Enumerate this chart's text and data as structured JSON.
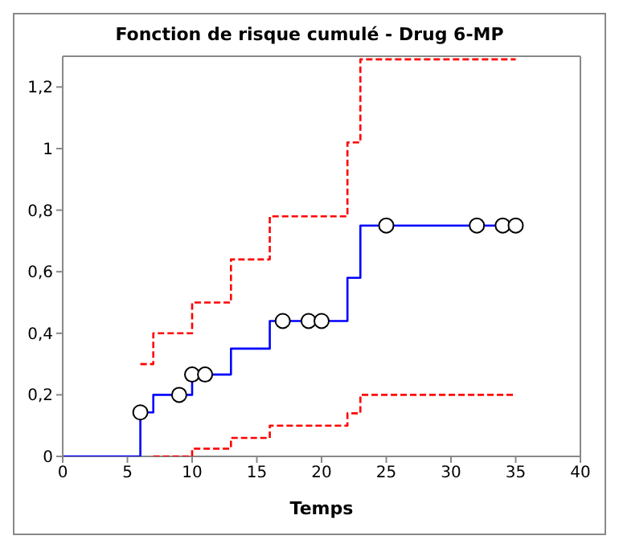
{
  "chart_data": {
    "type": "step",
    "title": "Fonction de risque cumulé - Drug 6-MP",
    "xlabel": "Temps",
    "xlim": [
      0,
      40
    ],
    "xticks": [
      0,
      5,
      10,
      15,
      20,
      25,
      30,
      35,
      40
    ],
    "ylim": [
      0,
      1.3
    ],
    "yticks": [
      0,
      {
        "value": 0.2,
        "label": "0,2"
      },
      {
        "value": 0.4,
        "label": "0,4"
      },
      {
        "value": 0.6,
        "label": "0,6"
      },
      {
        "value": 0.8,
        "label": "0,8"
      },
      1,
      {
        "value": 1.2,
        "label": "1,2"
      }
    ],
    "series": [
      {
        "color": "#ff0000",
        "line_style": "dashed",
        "marker": "none",
        "x": [
          6,
          7,
          10,
          13,
          16,
          22,
          23,
          35
        ],
        "values": [
          0.3,
          0.4,
          0.5,
          0.64,
          0.78,
          1.02,
          1.29,
          1.29
        ]
      },
      {
        "color": "#ff0000",
        "line_style": "dashed",
        "marker": "none",
        "x": [
          7,
          10,
          13,
          16,
          22,
          23,
          35
        ],
        "values": [
          0,
          0.025,
          0.06,
          0.1,
          0.14,
          0.2,
          0.2
        ]
      },
      {
        "color": "#0000ff",
        "line_style": "solid",
        "marker": "none",
        "x": [
          0,
          6,
          7,
          10,
          13,
          16,
          22,
          23,
          35
        ],
        "values": [
          0,
          0.143,
          0.2,
          0.266,
          0.35,
          0.44,
          0.58,
          0.75,
          0.75
        ]
      },
      {
        "type": "scatter",
        "color": "#000000",
        "marker": "circle",
        "x": [
          6,
          9,
          10,
          11,
          17,
          19,
          20,
          25,
          32,
          34,
          35
        ],
        "values": [
          0.143,
          0.2,
          0.266,
          0.266,
          0.44,
          0.44,
          0.44,
          0.75,
          0.75,
          0.75,
          0.75
        ]
      }
    ]
  }
}
